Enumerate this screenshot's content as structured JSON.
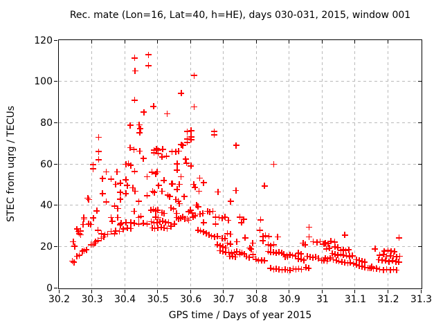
{
  "title": "Rec. mate (Lon=16, Lat=40, h=HE), days 030-031, 2015, window 001",
  "colors": {
    "background": "#ffffff",
    "border": "#000000",
    "grid": "#b9b9b9",
    "marker": "#ff0000",
    "text": "#000000"
  },
  "chart_data": {
    "type": "scatter",
    "title": "Rec. mate (Lon=16, Lat=40, h=HE), days 030-031, 2015, window 001",
    "xlabel": "GPS time / Days of year 2015",
    "ylabel": "STEC from uqrg / TECUs",
    "xlim": [
      30.2,
      31.3
    ],
    "ylim": [
      0,
      120
    ],
    "x_ticks": [
      30.2,
      30.3,
      30.4,
      30.5,
      30.6,
      30.7,
      30.8,
      30.9,
      31.0,
      31.1,
      31.2,
      31.3
    ],
    "x_tick_labels": [
      "30.2",
      "30.3",
      "30.4",
      "30.5",
      "30.6",
      "30.7",
      "30.8",
      "30.9",
      "31",
      "31.1",
      "31.2",
      "31.3"
    ],
    "y_ticks": [
      0,
      20,
      40,
      60,
      80,
      100,
      120
    ],
    "y_tick_labels": [
      "0",
      "20",
      "40",
      "60",
      "80",
      "100",
      "120"
    ],
    "grid": true,
    "legend": "none",
    "marker": {
      "shape": "plus",
      "size": 9,
      "color": "#ff0000"
    },
    "points": [
      [
        30.43,
        111.4
      ],
      [
        30.472,
        112.9
      ],
      [
        30.432,
        105.1
      ],
      [
        30.472,
        107.7
      ],
      [
        30.43,
        90.9
      ],
      [
        30.458,
        85.1
      ],
      [
        30.417,
        78.7
      ],
      [
        30.444,
        79.0
      ],
      [
        30.448,
        77.0
      ],
      [
        30.446,
        75.1
      ],
      [
        30.321,
        72.9
      ],
      [
        30.417,
        67.9
      ],
      [
        30.428,
        67.0
      ],
      [
        30.446,
        66.2
      ],
      [
        30.321,
        66.0
      ],
      [
        30.457,
        62.6
      ],
      [
        30.321,
        62.1
      ],
      [
        30.611,
        102.9
      ],
      [
        30.572,
        94.2
      ],
      [
        30.488,
        87.9
      ],
      [
        30.611,
        87.7
      ],
      [
        30.529,
        84.3
      ],
      [
        30.59,
        75.7
      ],
      [
        30.602,
        76.2
      ],
      [
        30.672,
        75.7
      ],
      [
        30.672,
        74.2
      ],
      [
        30.59,
        72.1
      ],
      [
        30.602,
        73.1
      ],
      [
        30.602,
        71.8
      ],
      [
        30.572,
        69.3
      ],
      [
        30.577,
        69.0
      ],
      [
        30.59,
        70.4
      ],
      [
        30.739,
        69.0
      ],
      [
        30.497,
        67.3
      ],
      [
        30.502,
        66.6
      ],
      [
        30.489,
        66.6
      ],
      [
        30.516,
        67.1
      ],
      [
        30.489,
        65.4
      ],
      [
        30.502,
        65.1
      ],
      [
        30.544,
        66.0
      ],
      [
        30.556,
        66.0
      ],
      [
        30.564,
        66.2
      ],
      [
        30.514,
        63.4
      ],
      [
        30.527,
        63.7
      ],
      [
        30.585,
        62.3
      ],
      [
        30.304,
        59.6
      ],
      [
        30.304,
        57.6
      ],
      [
        30.404,
        59.8
      ],
      [
        30.411,
        60.1
      ],
      [
        30.418,
        59.3
      ],
      [
        30.344,
        56.2
      ],
      [
        30.377,
        56.2
      ],
      [
        30.43,
        56.4
      ],
      [
        30.333,
        52.9
      ],
      [
        30.359,
        52.7
      ],
      [
        30.468,
        53.8
      ],
      [
        30.373,
        50.1
      ],
      [
        30.387,
        50.7
      ],
      [
        30.404,
        52.3
      ],
      [
        30.408,
        49.6
      ],
      [
        30.425,
        48.4
      ],
      [
        30.432,
        46.8
      ],
      [
        30.333,
        45.7
      ],
      [
        30.387,
        46.2
      ],
      [
        30.404,
        45.7
      ],
      [
        30.288,
        43.4
      ],
      [
        30.291,
        42.7
      ],
      [
        30.344,
        41.6
      ],
      [
        30.387,
        42.9
      ],
      [
        30.443,
        41.8
      ],
      [
        30.468,
        44.6
      ],
      [
        30.369,
        39.6
      ],
      [
        30.379,
        38.4
      ],
      [
        30.315,
        37.3
      ],
      [
        30.429,
        37.1
      ],
      [
        30.449,
        34.6
      ],
      [
        30.443,
        34.0
      ],
      [
        30.276,
        34.0
      ],
      [
        30.276,
        33.4
      ],
      [
        30.305,
        33.8
      ],
      [
        30.359,
        34.0
      ],
      [
        30.362,
        32.3
      ],
      [
        30.379,
        34.0
      ],
      [
        30.389,
        31.2
      ],
      [
        30.387,
        30.4
      ],
      [
        30.274,
        30.7
      ],
      [
        30.291,
        30.9
      ],
      [
        30.297,
        30.7
      ],
      [
        30.404,
        31.6
      ],
      [
        30.418,
        31.6
      ],
      [
        30.429,
        31.2
      ],
      [
        30.443,
        30.9
      ],
      [
        30.457,
        31.2
      ],
      [
        30.468,
        30.9
      ],
      [
        30.259,
        27.3
      ],
      [
        30.266,
        27.6
      ],
      [
        30.262,
        26.2
      ],
      [
        30.266,
        25.7
      ],
      [
        30.255,
        28.4
      ],
      [
        30.319,
        27.9
      ],
      [
        30.329,
        26.2
      ],
      [
        30.34,
        25.7
      ],
      [
        30.348,
        26.0
      ],
      [
        30.336,
        24.6
      ],
      [
        30.329,
        24.0
      ],
      [
        30.359,
        27.3
      ],
      [
        30.373,
        27.6
      ],
      [
        30.384,
        27.3
      ],
      [
        30.369,
        26.2
      ],
      [
        30.396,
        28.4
      ],
      [
        30.408,
        29.0
      ],
      [
        30.418,
        28.7
      ],
      [
        30.244,
        22.3
      ],
      [
        30.248,
        20.1
      ],
      [
        30.272,
        17.7
      ],
      [
        30.277,
        18.1
      ],
      [
        30.284,
        18.4
      ],
      [
        30.298,
        20.9
      ],
      [
        30.304,
        20.9
      ],
      [
        30.309,
        21.6
      ],
      [
        30.312,
        22.3
      ],
      [
        30.319,
        22.9
      ],
      [
        30.255,
        15.3
      ],
      [
        30.262,
        15.7
      ],
      [
        30.241,
        12.9
      ],
      [
        30.246,
        12.3
      ],
      [
        30.559,
        60.1
      ],
      [
        30.588,
        60.4
      ],
      [
        30.601,
        59.0
      ],
      [
        30.483,
        56.0
      ],
      [
        30.499,
        56.2
      ],
      [
        30.494,
        55.3
      ],
      [
        30.519,
        52.0
      ],
      [
        30.543,
        50.4
      ],
      [
        30.546,
        50.4
      ],
      [
        30.503,
        49.6
      ],
      [
        30.566,
        50.1
      ],
      [
        30.559,
        57.1
      ],
      [
        30.571,
        53.8
      ],
      [
        30.61,
        50.1
      ],
      [
        30.614,
        48.7
      ],
      [
        30.628,
        53.1
      ],
      [
        30.64,
        50.9
      ],
      [
        30.485,
        46.8
      ],
      [
        30.49,
        46.2
      ],
      [
        30.514,
        46.8
      ],
      [
        30.531,
        44.9
      ],
      [
        30.537,
        44.2
      ],
      [
        30.559,
        47.6
      ],
      [
        30.581,
        44.2
      ],
      [
        30.556,
        42.7
      ],
      [
        30.563,
        42.0
      ],
      [
        30.566,
        40.7
      ],
      [
        30.626,
        46.8
      ],
      [
        30.683,
        46.4
      ],
      [
        30.738,
        47.1
      ],
      [
        30.722,
        41.8
      ],
      [
        30.618,
        40.1
      ],
      [
        30.623,
        39.3
      ],
      [
        30.594,
        36.8
      ],
      [
        30.6,
        37.6
      ],
      [
        30.605,
        36.2
      ],
      [
        30.48,
        37.6
      ],
      [
        30.487,
        37.9
      ],
      [
        30.494,
        37.3
      ],
      [
        30.5,
        37.6
      ],
      [
        30.513,
        36.4
      ],
      [
        30.52,
        36.0
      ],
      [
        30.541,
        38.7
      ],
      [
        30.548,
        38.2
      ],
      [
        30.558,
        36.0
      ],
      [
        30.629,
        35.7
      ],
      [
        30.637,
        36.0
      ],
      [
        30.652,
        37.1
      ],
      [
        30.659,
        36.8
      ],
      [
        30.668,
        37.1
      ],
      [
        30.494,
        34.2
      ],
      [
        30.502,
        34.0
      ],
      [
        30.481,
        32.0
      ],
      [
        30.489,
        31.6
      ],
      [
        30.498,
        31.6
      ],
      [
        30.507,
        32.0
      ],
      [
        30.516,
        32.3
      ],
      [
        30.524,
        31.8
      ],
      [
        30.533,
        31.6
      ],
      [
        30.558,
        34.0
      ],
      [
        30.564,
        33.4
      ],
      [
        30.57,
        33.8
      ],
      [
        30.577,
        34.2
      ],
      [
        30.583,
        33.4
      ],
      [
        30.59,
        33.4
      ],
      [
        30.594,
        32.7
      ],
      [
        30.608,
        34.2
      ],
      [
        30.614,
        34.9
      ],
      [
        30.64,
        31.6
      ],
      [
        30.484,
        29.0
      ],
      [
        30.491,
        28.7
      ],
      [
        30.501,
        29.0
      ],
      [
        30.511,
        29.3
      ],
      [
        30.52,
        29.0
      ],
      [
        30.529,
        28.7
      ],
      [
        30.541,
        29.8
      ],
      [
        30.551,
        30.9
      ],
      [
        30.676,
        34.2
      ],
      [
        30.687,
        34.0
      ],
      [
        30.696,
        33.8
      ],
      [
        30.704,
        34.2
      ],
      [
        30.715,
        32.7
      ],
      [
        30.676,
        30.9
      ],
      [
        30.623,
        27.9
      ],
      [
        30.63,
        27.6
      ],
      [
        30.639,
        27.1
      ],
      [
        30.648,
        26.4
      ],
      [
        30.656,
        25.7
      ],
      [
        30.664,
        25.1
      ],
      [
        30.673,
        24.6
      ],
      [
        30.682,
        24.9
      ],
      [
        30.696,
        24.0
      ],
      [
        30.704,
        23.8
      ],
      [
        30.712,
        26.2
      ],
      [
        30.721,
        26.0
      ],
      [
        30.712,
        21.6
      ],
      [
        30.721,
        21.2
      ],
      [
        30.682,
        20.9
      ],
      [
        30.69,
        20.4
      ],
      [
        30.699,
        19.8
      ],
      [
        30.707,
        19.3
      ],
      [
        30.69,
        17.9
      ],
      [
        30.699,
        17.6
      ],
      [
        30.707,
        17.1
      ],
      [
        30.716,
        17.3
      ],
      [
        30.725,
        16.8
      ],
      [
        30.733,
        17.1
      ],
      [
        30.741,
        17.6
      ],
      [
        30.719,
        15.3
      ],
      [
        30.728,
        15.1
      ],
      [
        30.736,
        14.9
      ],
      [
        30.741,
        22.3
      ],
      [
        30.853,
        59.8
      ],
      [
        30.825,
        49.3
      ],
      [
        30.75,
        34.2
      ],
      [
        30.762,
        33.1
      ],
      [
        30.755,
        31.6
      ],
      [
        30.813,
        32.9
      ],
      [
        30.811,
        27.9
      ],
      [
        30.766,
        24.2
      ],
      [
        30.82,
        24.9
      ],
      [
        30.828,
        25.3
      ],
      [
        30.838,
        24.9
      ],
      [
        30.82,
        22.7
      ],
      [
        30.865,
        24.6
      ],
      [
        30.96,
        29.3
      ],
      [
        30.96,
        24.6
      ],
      [
        30.836,
        20.9
      ],
      [
        30.844,
        20.4
      ],
      [
        30.853,
        20.9
      ],
      [
        30.78,
        19.3
      ],
      [
        30.784,
        18.7
      ],
      [
        30.789,
        21.6
      ],
      [
        30.973,
        22.3
      ],
      [
        30.984,
        22.0
      ],
      [
        30.994,
        22.3
      ],
      [
        31.005,
        21.2
      ],
      [
        30.942,
        21.6
      ],
      [
        30.948,
        20.9
      ],
      [
        30.75,
        17.3
      ],
      [
        30.75,
        16.2
      ],
      [
        30.756,
        16.8
      ],
      [
        30.763,
        16.4
      ],
      [
        30.77,
        15.3
      ],
      [
        30.779,
        14.6
      ],
      [
        30.79,
        16.2
      ],
      [
        30.79,
        14.9
      ],
      [
        30.798,
        13.8
      ],
      [
        30.807,
        13.1
      ],
      [
        30.816,
        13.4
      ],
      [
        30.825,
        13.1
      ],
      [
        30.836,
        17.6
      ],
      [
        30.843,
        17.1
      ],
      [
        30.852,
        17.3
      ],
      [
        30.861,
        16.8
      ],
      [
        30.869,
        17.1
      ],
      [
        30.877,
        16.8
      ],
      [
        30.884,
        16.2
      ],
      [
        30.893,
        15.7
      ],
      [
        30.902,
        16.0
      ],
      [
        30.91,
        15.7
      ],
      [
        30.919,
        15.3
      ],
      [
        30.888,
        14.9
      ],
      [
        30.895,
        14.9
      ],
      [
        30.928,
        16.8
      ],
      [
        30.936,
        16.4
      ],
      [
        30.928,
        14.0
      ],
      [
        30.936,
        13.8
      ],
      [
        30.944,
        13.4
      ],
      [
        30.955,
        15.3
      ],
      [
        30.964,
        14.9
      ],
      [
        30.972,
        14.6
      ],
      [
        30.98,
        14.9
      ],
      [
        30.989,
        14.3
      ],
      [
        30.998,
        13.4
      ],
      [
        31.006,
        13.1
      ],
      [
        31.015,
        12.9
      ],
      [
        30.843,
        9.5
      ],
      [
        30.853,
        9.0
      ],
      [
        30.861,
        9.2
      ],
      [
        30.869,
        8.9
      ],
      [
        30.878,
        8.6
      ],
      [
        30.887,
        8.9
      ],
      [
        30.895,
        8.6
      ],
      [
        30.903,
        8.4
      ],
      [
        30.912,
        9.2
      ],
      [
        30.92,
        8.9
      ],
      [
        30.929,
        9.2
      ],
      [
        30.937,
        8.9
      ],
      [
        30.951,
        9.8
      ],
      [
        30.959,
        9.5
      ],
      [
        31.069,
        25.5
      ],
      [
        31.01,
        21.7
      ],
      [
        31.018,
        21.4
      ],
      [
        31.027,
        22.5
      ],
      [
        31.038,
        22.2
      ],
      [
        31.022,
        19.2
      ],
      [
        31.013,
        18.8
      ],
      [
        31.039,
        19.9
      ],
      [
        31.048,
        19.5
      ],
      [
        31.057,
        18.1
      ],
      [
        31.064,
        18.4
      ],
      [
        31.072,
        18.1
      ],
      [
        31.081,
        18.4
      ],
      [
        31.031,
        16.6
      ],
      [
        31.039,
        16.2
      ],
      [
        31.048,
        15.8
      ],
      [
        31.057,
        16.2
      ],
      [
        31.01,
        14.4
      ],
      [
        31.017,
        13.9
      ],
      [
        31.025,
        14.4
      ],
      [
        31.034,
        13.6
      ],
      [
        31.043,
        13.3
      ],
      [
        31.065,
        15.8
      ],
      [
        31.074,
        15.5
      ],
      [
        31.083,
        15.1
      ],
      [
        31.092,
        15.5
      ],
      [
        31.051,
        12.8
      ],
      [
        31.06,
        12.5
      ],
      [
        31.069,
        12.2
      ],
      [
        31.078,
        11.9
      ],
      [
        31.086,
        12.2
      ],
      [
        31.095,
        11.7
      ],
      [
        31.104,
        13.6
      ],
      [
        31.113,
        13.3
      ],
      [
        31.121,
        12.8
      ],
      [
        31.129,
        12.5
      ],
      [
        31.104,
        11.1
      ],
      [
        31.113,
        10.6
      ],
      [
        31.121,
        10.3
      ],
      [
        31.129,
        9.9
      ],
      [
        31.139,
        9.7
      ],
      [
        31.148,
        9.5
      ],
      [
        31.156,
        9.2
      ],
      [
        31.164,
        9.5
      ],
      [
        31.143,
        9.7
      ],
      [
        31.234,
        24.2
      ],
      [
        31.161,
        18.8
      ],
      [
        31.189,
        17.7
      ],
      [
        31.2,
        18.1
      ],
      [
        31.21,
        17.7
      ],
      [
        31.22,
        17.5
      ],
      [
        31.175,
        15.8
      ],
      [
        31.186,
        16.1
      ],
      [
        31.196,
        15.3
      ],
      [
        31.207,
        15.6
      ],
      [
        31.217,
        15.3
      ],
      [
        31.227,
        14.9
      ],
      [
        31.236,
        15.3
      ],
      [
        31.172,
        13.6
      ],
      [
        31.182,
        13.4
      ],
      [
        31.193,
        13.1
      ],
      [
        31.203,
        12.7
      ],
      [
        31.214,
        13.1
      ],
      [
        31.224,
        12.7
      ],
      [
        31.233,
        12.5
      ],
      [
        31.165,
        9.2
      ],
      [
        31.175,
        8.9
      ],
      [
        31.186,
        8.6
      ],
      [
        31.196,
        8.9
      ],
      [
        31.207,
        8.6
      ],
      [
        31.217,
        8.9
      ],
      [
        31.226,
        8.6
      ],
      [
        31.151,
        10.1
      ]
    ]
  }
}
